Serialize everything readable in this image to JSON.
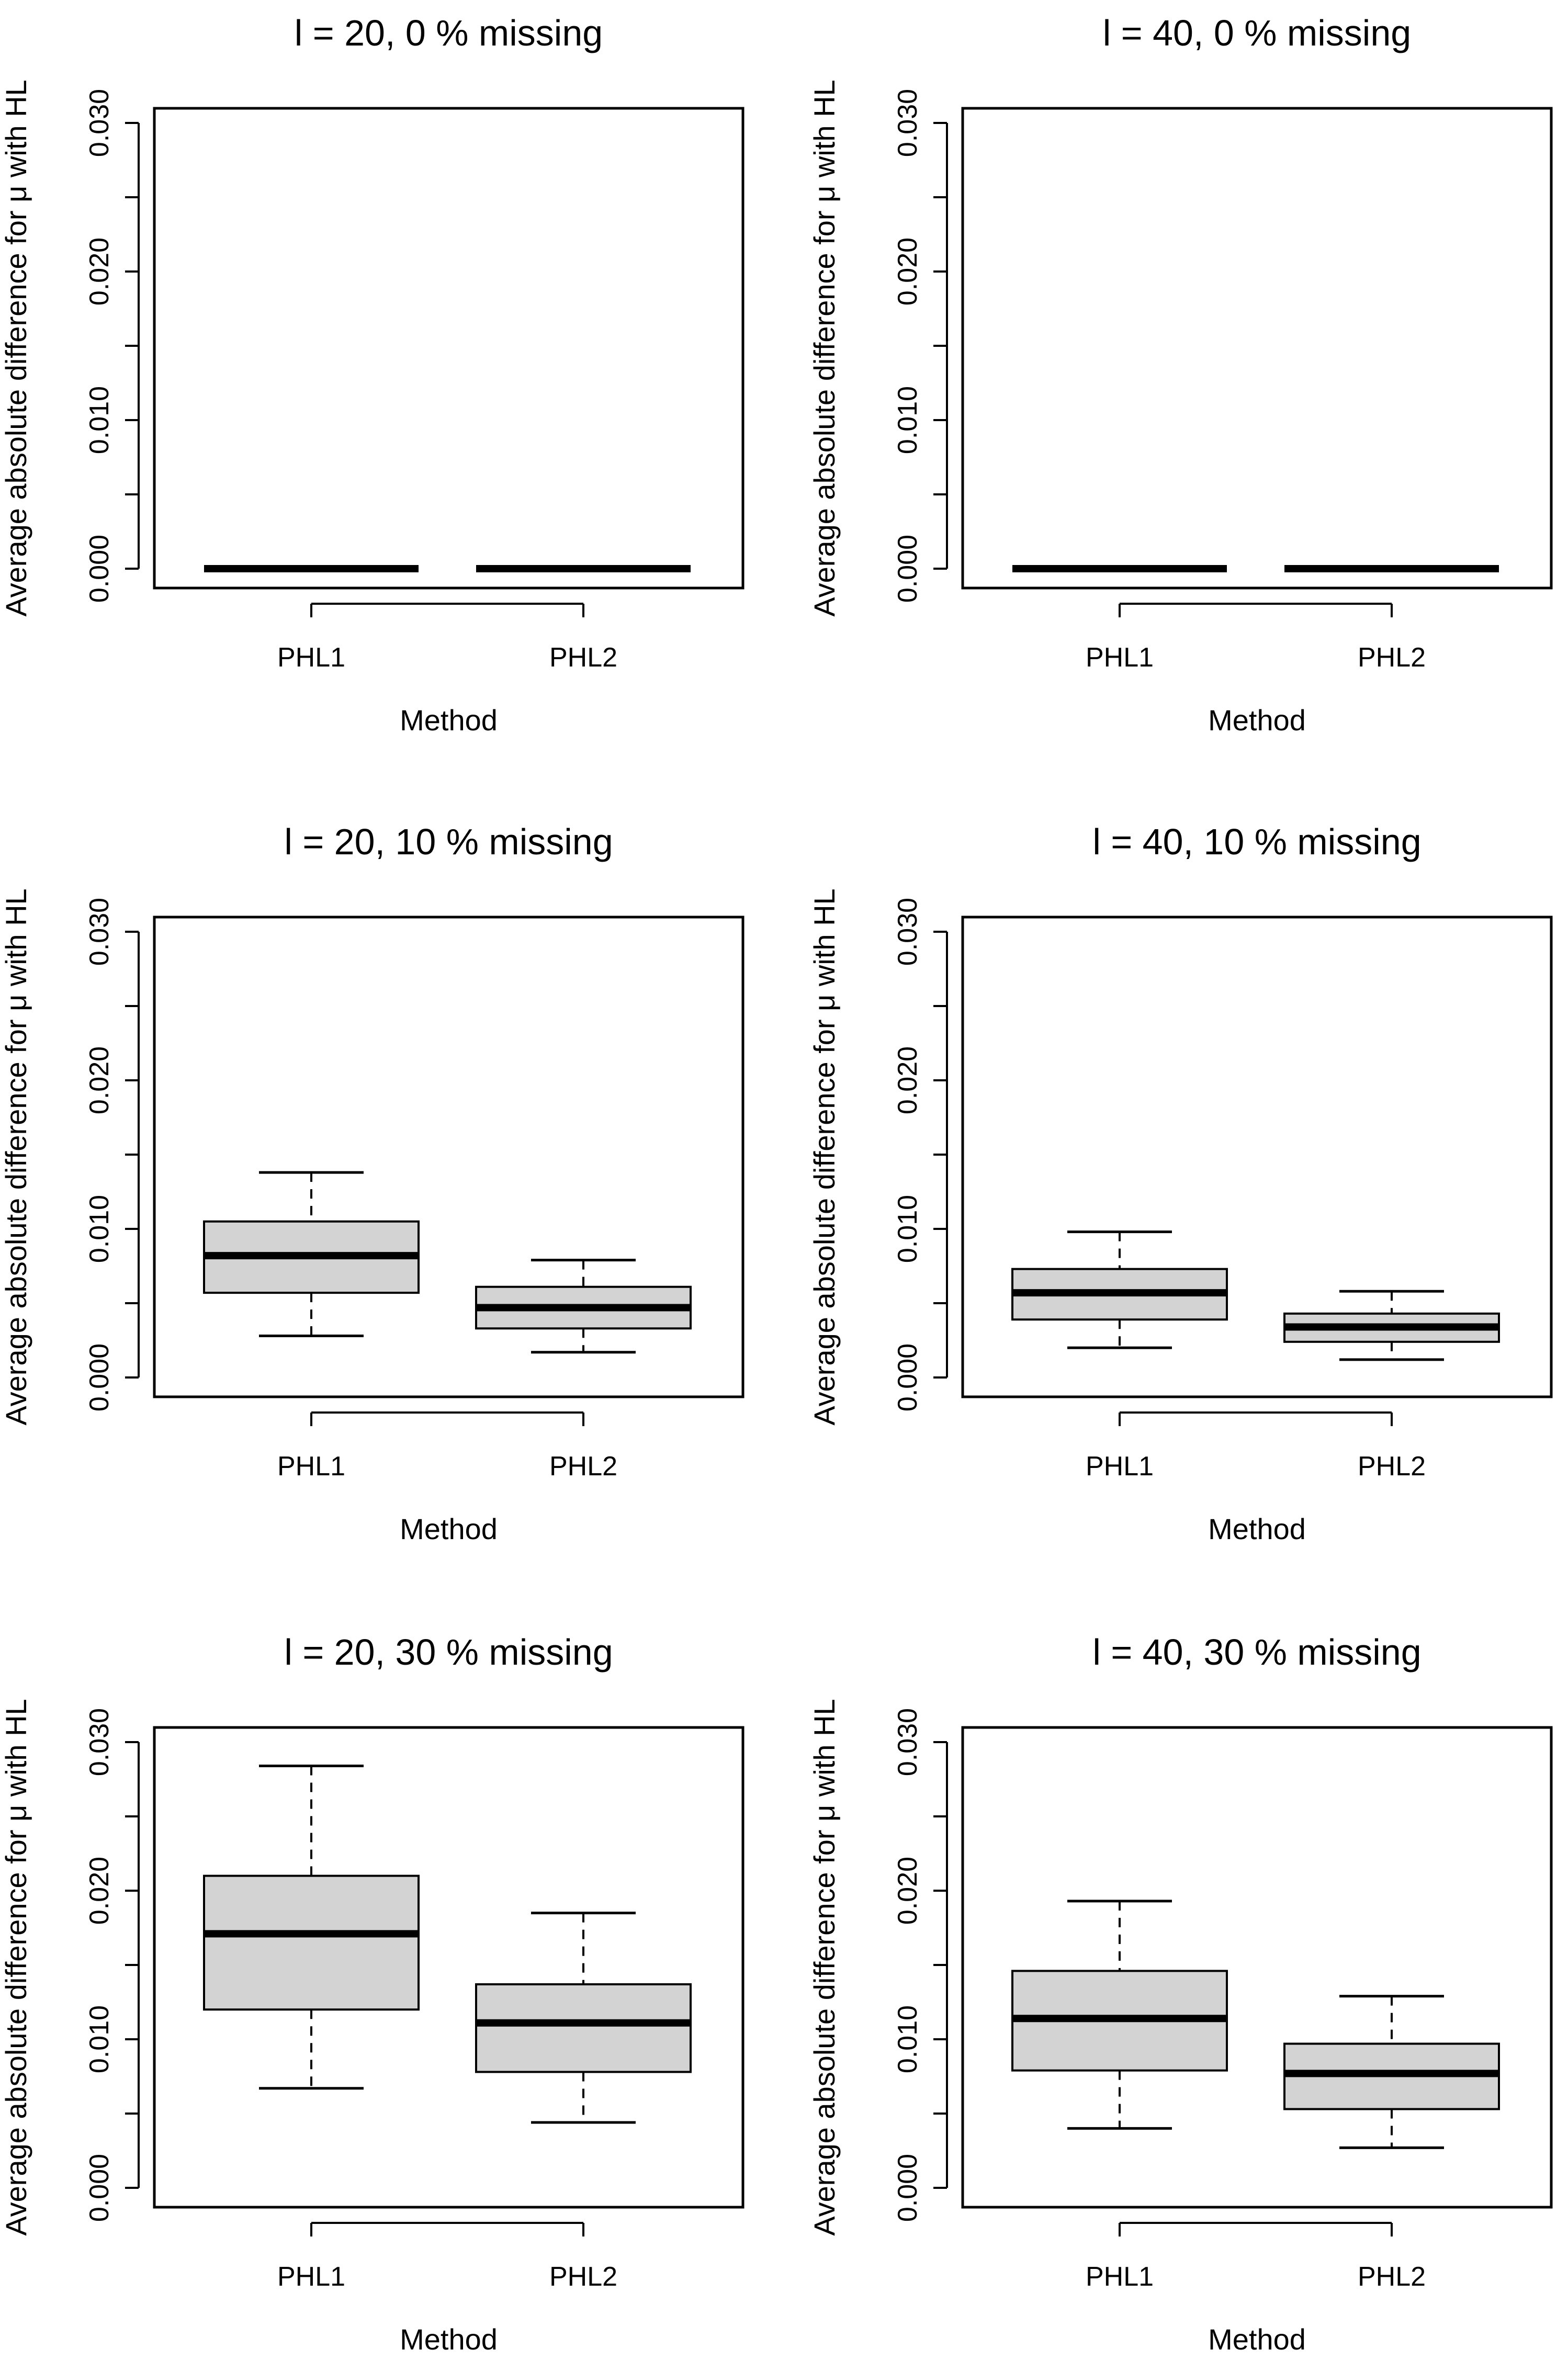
{
  "chart_data": [
    {
      "type": "box",
      "title": "l = 20, 0 % missing",
      "xlabel": "Method",
      "ylabel": "Average absolute difference for μ with HL",
      "ylim": [
        0,
        0.03
      ],
      "yticks": [
        "0.000",
        "0.010",
        "0.020",
        "0.030"
      ],
      "categories": [
        "PHL1",
        "PHL2"
      ],
      "boxes": [
        {
          "name": "PHL1",
          "min": 0,
          "q1": 0,
          "median": 0,
          "q3": 0,
          "max": 0
        },
        {
          "name": "PHL2",
          "min": 0,
          "q1": 0,
          "median": 0,
          "q3": 0,
          "max": 0
        }
      ]
    },
    {
      "type": "box",
      "title": "l = 40, 0 % missing",
      "xlabel": "Method",
      "ylabel": "Average absolute difference for μ with HL",
      "ylim": [
        0,
        0.03
      ],
      "yticks": [
        "0.000",
        "0.010",
        "0.020",
        "0.030"
      ],
      "categories": [
        "PHL1",
        "PHL2"
      ],
      "boxes": [
        {
          "name": "PHL1",
          "min": 0,
          "q1": 0,
          "median": 0,
          "q3": 0,
          "max": 0
        },
        {
          "name": "PHL2",
          "min": 0,
          "q1": 0,
          "median": 0,
          "q3": 0,
          "max": 0
        }
      ]
    },
    {
      "type": "box",
      "title": "l = 20, 10 % missing",
      "xlabel": "Method",
      "ylabel": "Average absolute difference for μ with HL",
      "ylim": [
        0,
        0.03
      ],
      "yticks": [
        "0.000",
        "0.010",
        "0.020",
        "0.030"
      ],
      "categories": [
        "PHL1",
        "PHL2"
      ],
      "boxes": [
        {
          "name": "PHL1",
          "min": 0.0028,
          "q1": 0.0057,
          "median": 0.0082,
          "q3": 0.0105,
          "max": 0.0138
        },
        {
          "name": "PHL2",
          "min": 0.0017,
          "q1": 0.0033,
          "median": 0.0047,
          "q3": 0.0061,
          "max": 0.0079
        }
      ]
    },
    {
      "type": "box",
      "title": "l = 40, 10 % missing",
      "xlabel": "Method",
      "ylabel": "Average absolute difference for μ with HL",
      "ylim": [
        0,
        0.03
      ],
      "yticks": [
        "0.000",
        "0.010",
        "0.020",
        "0.030"
      ],
      "categories": [
        "PHL1",
        "PHL2"
      ],
      "boxes": [
        {
          "name": "PHL1",
          "min": 0.002,
          "q1": 0.0039,
          "median": 0.0057,
          "q3": 0.0073,
          "max": 0.0098
        },
        {
          "name": "PHL2",
          "min": 0.0012,
          "q1": 0.0024,
          "median": 0.0034,
          "q3": 0.0043,
          "max": 0.0058
        }
      ]
    },
    {
      "type": "box",
      "title": "l = 20, 30 % missing",
      "xlabel": "Method",
      "ylabel": "Average absolute difference for μ with HL",
      "ylim": [
        0,
        0.03
      ],
      "yticks": [
        "0.000",
        "0.010",
        "0.020",
        "0.030"
      ],
      "categories": [
        "PHL1",
        "PHL2"
      ],
      "boxes": [
        {
          "name": "PHL1",
          "min": 0.0067,
          "q1": 0.012,
          "median": 0.0171,
          "q3": 0.021,
          "max": 0.0284
        },
        {
          "name": "PHL2",
          "min": 0.0044,
          "q1": 0.0078,
          "median": 0.0111,
          "q3": 0.0137,
          "max": 0.0185
        }
      ]
    },
    {
      "type": "box",
      "title": "l = 40, 30 % missing",
      "xlabel": "Method",
      "ylabel": "Average absolute difference for μ with HL",
      "ylim": [
        0,
        0.03
      ],
      "yticks": [
        "0.000",
        "0.010",
        "0.020",
        "0.030"
      ],
      "categories": [
        "PHL1",
        "PHL2"
      ],
      "boxes": [
        {
          "name": "PHL1",
          "min": 0.004,
          "q1": 0.0079,
          "median": 0.0114,
          "q3": 0.0146,
          "max": 0.0193
        },
        {
          "name": "PHL2",
          "min": 0.0027,
          "q1": 0.0053,
          "median": 0.0077,
          "q3": 0.0097,
          "max": 0.0129
        }
      ]
    }
  ]
}
